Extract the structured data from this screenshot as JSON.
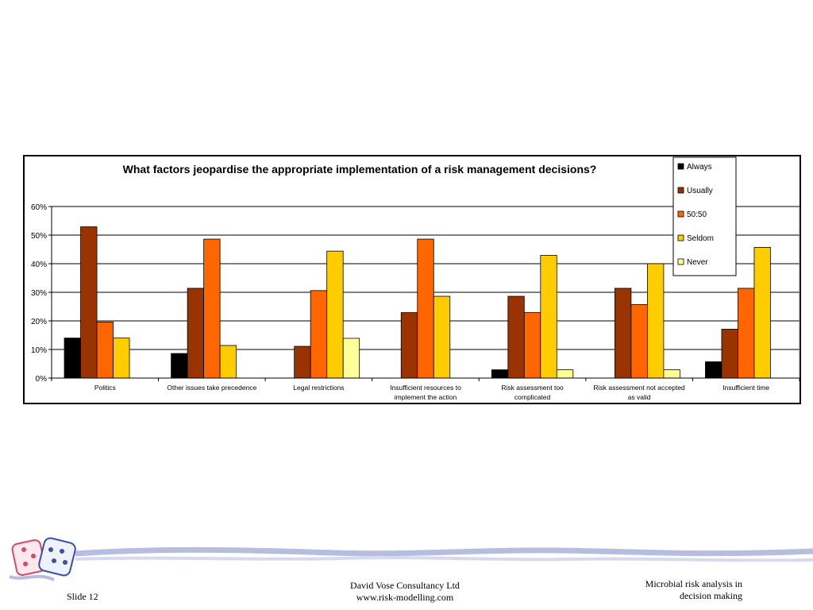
{
  "chart_data": {
    "type": "bar",
    "title": "What factors jeopardise the appropriate implementation of a risk management decisions?",
    "categories": [
      [
        "Politics"
      ],
      [
        "Other issues take precedence"
      ],
      [
        "Legal restrictions"
      ],
      [
        "Insufficient resources to",
        "implement the action"
      ],
      [
        "Risk assessment too",
        "complicated"
      ],
      [
        "Risk assessment not accepted",
        "as valid"
      ],
      [
        "Insufficient time"
      ]
    ],
    "series": [
      {
        "name": "Always",
        "color": "#000000",
        "values": [
          14,
          8.6,
          0,
          0,
          2.9,
          0,
          5.7
        ]
      },
      {
        "name": "Usually",
        "color": "#993300",
        "values": [
          52.9,
          31.4,
          11.1,
          22.9,
          28.6,
          31.4,
          17.1
        ]
      },
      {
        "name": "50:50",
        "color": "#FF6600",
        "values": [
          19.6,
          48.6,
          30.6,
          48.6,
          22.9,
          25.7,
          31.4
        ]
      },
      {
        "name": "Seldom",
        "color": "#FFCC00",
        "values": [
          14,
          11.4,
          44.4,
          28.6,
          42.9,
          40,
          45.7
        ]
      },
      {
        "name": "Never",
        "color": "#FFFF99",
        "values": [
          0,
          0,
          13.9,
          0,
          2.9,
          2.9,
          0
        ]
      }
    ],
    "ylim": [
      0,
      60
    ],
    "yticks": [
      "0%",
      "10%",
      "20%",
      "30%",
      "40%",
      "50%",
      "60%"
    ],
    "grid": true,
    "legend": "top-right"
  },
  "footer": {
    "slide": "Slide 12",
    "company_line1": "David Vose Consultancy Ltd",
    "company_line2": "www.risk-modelling.com",
    "subject_line1": "Microbial risk analysis in",
    "subject_line2": "decision making"
  }
}
